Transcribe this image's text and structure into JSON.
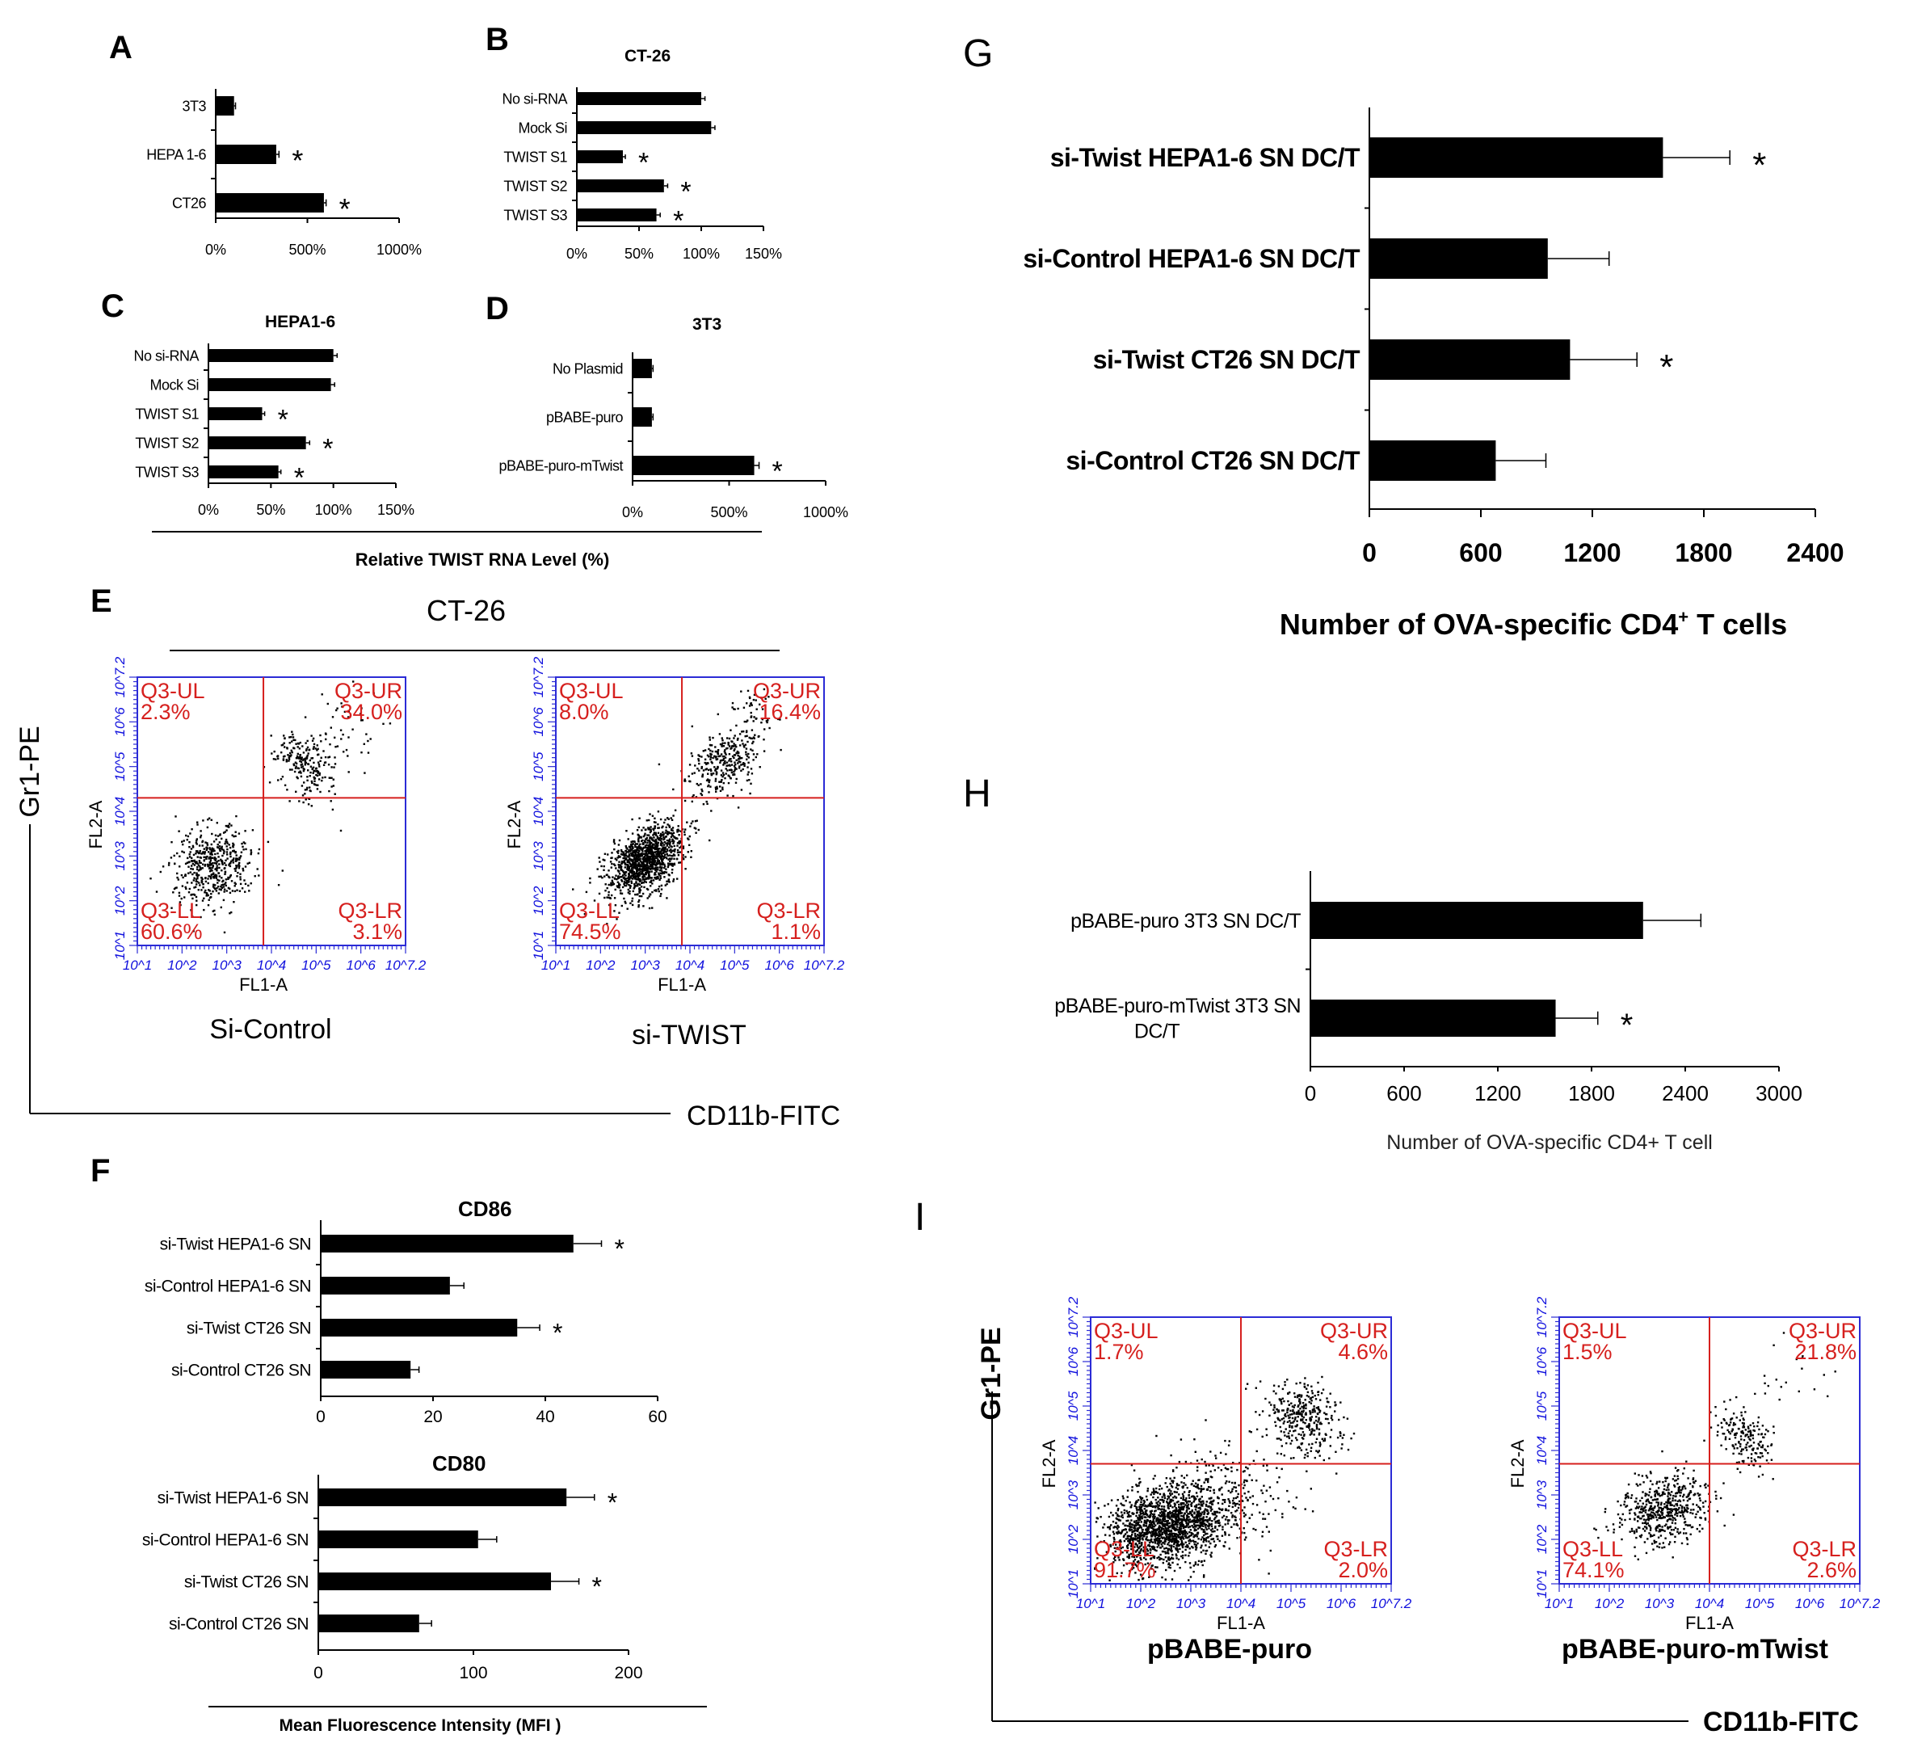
{
  "figure": {
    "panel_labels": [
      "A",
      "B",
      "C",
      "D",
      "E",
      "F",
      "G",
      "H",
      "I"
    ]
  },
  "chart_data": [
    {
      "id": "A",
      "type": "bar",
      "orientation": "horizontal",
      "title": "",
      "categories": [
        "3T3",
        "HEPA 1-6",
        "CT26"
      ],
      "values": [
        100,
        330,
        590
      ],
      "errors": [
        8,
        15,
        12
      ],
      "significant": [
        false,
        true,
        true
      ],
      "xlim": [
        0,
        1000
      ],
      "ticks": [
        "0%",
        "500%",
        "1000%"
      ]
    },
    {
      "id": "B",
      "type": "bar",
      "orientation": "horizontal",
      "title": "CT-26",
      "categories": [
        "No si-RNA",
        "Mock Si",
        "TWIST S1",
        "TWIST S2",
        "TWIST S3"
      ],
      "values": [
        100,
        108,
        37,
        70,
        64
      ],
      "errors": [
        3,
        3,
        2,
        3,
        3
      ],
      "significant": [
        false,
        false,
        true,
        true,
        true
      ],
      "xlim": [
        0,
        150
      ],
      "ticks": [
        "0%",
        "50%",
        "100%",
        "150%"
      ]
    },
    {
      "id": "C",
      "type": "bar",
      "orientation": "horizontal",
      "title": "HEPA1-6",
      "categories": [
        "No si-RNA",
        "Mock Si",
        "TWIST S1",
        "TWIST S2",
        "TWIST S3"
      ],
      "values": [
        100,
        98,
        43,
        78,
        56
      ],
      "errors": [
        3,
        3,
        2,
        3,
        2
      ],
      "significant": [
        false,
        false,
        true,
        true,
        true
      ],
      "xlim": [
        0,
        150
      ],
      "ticks": [
        "0%",
        "50%",
        "100%",
        "150%"
      ]
    },
    {
      "id": "D",
      "type": "bar",
      "orientation": "horizontal",
      "title": "3T3",
      "categories": [
        "No Plasmid",
        "pBABE-puro",
        "pBABE-puro-mTwist"
      ],
      "values": [
        100,
        100,
        630
      ],
      "errors": [
        6,
        6,
        25
      ],
      "significant": [
        false,
        false,
        true
      ],
      "xlim": [
        0,
        1000
      ],
      "ticks": [
        "0%",
        "500%",
        "1000%"
      ],
      "shared_xlabel": "Relative TWIST RNA Level (%)"
    },
    {
      "id": "F1",
      "type": "bar",
      "orientation": "horizontal",
      "title": "CD86",
      "categories": [
        "si-Twist HEPA1-6 SN",
        "si-Control HEPA1-6 SN",
        "si-Twist CT26 SN",
        "si-Control CT26 SN"
      ],
      "values": [
        45,
        23,
        35,
        16
      ],
      "errors": [
        5,
        2.5,
        4,
        1.5
      ],
      "significant": [
        true,
        false,
        true,
        false
      ],
      "xlim": [
        0,
        60
      ],
      "ticks": [
        "0",
        "20",
        "40",
        "60"
      ]
    },
    {
      "id": "F2",
      "type": "bar",
      "orientation": "horizontal",
      "title": "CD80",
      "categories": [
        "si-Twist HEPA1-6 SN",
        "si-Control HEPA1-6 SN",
        "si-Twist CT26 SN",
        "si-Control CT26 SN"
      ],
      "values": [
        160,
        103,
        150,
        65
      ],
      "errors": [
        18,
        12,
        18,
        8
      ],
      "significant": [
        true,
        false,
        true,
        false
      ],
      "xlim": [
        0,
        200
      ],
      "ticks": [
        "0",
        "100",
        "200"
      ],
      "xlabel": "Mean Fluorescence Intensity (MFI )"
    },
    {
      "id": "G",
      "type": "bar",
      "orientation": "horizontal",
      "title": "",
      "categories": [
        "si-Twist HEPA1-6 SN DC/T",
        "si-Control HEPA1-6 SN DC/T",
        "si-Twist CT26 SN DC/T",
        "si-Control CT26 SN DC/T"
      ],
      "values": [
        1580,
        960,
        1080,
        680
      ],
      "errors": [
        360,
        330,
        360,
        270
      ],
      "significant": [
        true,
        false,
        true,
        false
      ],
      "xlim": [
        0,
        2400
      ],
      "ticks": [
        "0",
        "600",
        "1200",
        "1800",
        "2400"
      ],
      "xlabel_main": "Number  of OVA-specific CD4",
      "xlabel_sup": "+",
      "xlabel_tail": " T cells"
    },
    {
      "id": "H",
      "type": "bar",
      "orientation": "horizontal",
      "title": "",
      "categories": [
        "pBABE-puro 3T3 SN DC/T",
        "pBABE-puro-mTwist 3T3 SN DC/T"
      ],
      "category_lines": [
        [
          "pBABE-puro 3T3 SN DC/T"
        ],
        [
          "pBABE-puro-mTwist 3T3 SN",
          "DC/T"
        ]
      ],
      "values": [
        2130,
        1570
      ],
      "errors": [
        370,
        270
      ],
      "significant": [
        false,
        true
      ],
      "xlim": [
        0,
        3000
      ],
      "ticks": [
        "0",
        "600",
        "1200",
        "1800",
        "2400",
        "3000"
      ],
      "xlabel": "Number of OVA-specific CD4+ T cell"
    },
    {
      "id": "E",
      "type": "scatter",
      "title": "CT-26",
      "y_axis_label": "Gr1-PE",
      "x_axis_label": "CD11b-FITC",
      "plots": [
        {
          "name": "Si-Control",
          "UL": "2.3%",
          "UR": "34.0%",
          "LL": "60.6%",
          "LR": "3.1%"
        },
        {
          "name": "si-TWIST",
          "UL": "8.0%",
          "UR": "16.4%",
          "LL": "74.5%",
          "LR": "1.1%"
        }
      ]
    },
    {
      "id": "I",
      "type": "scatter",
      "title": "",
      "y_axis_label": "Gr1-PE",
      "x_axis_label": "CD11b-FITC",
      "plots": [
        {
          "name": "pBABE-puro",
          "UL": "1.7%",
          "UR": "4.6%",
          "LL": "91.7%",
          "LR": "2.0%"
        },
        {
          "name": "pBABE-puro-mTwist",
          "UL": "1.5%",
          "UR": "21.8%",
          "LL": "74.1%",
          "LR": "2.6%"
        }
      ]
    }
  ],
  "flow": {
    "quadrant_names": [
      "Q3-UL",
      "Q3-UR",
      "Q3-LL",
      "Q3-LR"
    ],
    "x_channel": "FL1-A",
    "y_channel": "FL2-A",
    "tick_labels": [
      "10^1",
      "10^2",
      "10^3",
      "10^4",
      "10^5",
      "10^6",
      "10^7.2"
    ]
  }
}
